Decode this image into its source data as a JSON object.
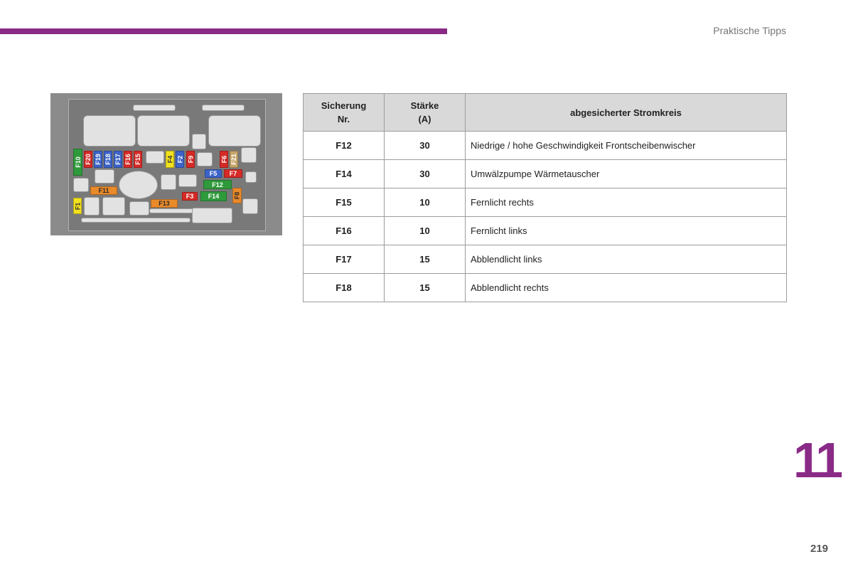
{
  "header": {
    "section_title": "Praktische Tipps"
  },
  "footer": {
    "chapter_number": "11",
    "page_number": "219"
  },
  "diagram": {
    "fuses": [
      {
        "id": "f10",
        "label": "F10",
        "color": "#2f9a3c"
      },
      {
        "id": "f20",
        "label": "F20",
        "color": "#d52a26"
      },
      {
        "id": "f19",
        "label": "F19",
        "color": "#3c63c9"
      },
      {
        "id": "f18",
        "label": "F18",
        "color": "#3c63c9"
      },
      {
        "id": "f17",
        "label": "F17",
        "color": "#3c63c9"
      },
      {
        "id": "f16",
        "label": "F16",
        "color": "#d52a26"
      },
      {
        "id": "f15",
        "label": "F15",
        "color": "#d52a26"
      },
      {
        "id": "f4",
        "label": "F4",
        "color": "#f2e21c"
      },
      {
        "id": "f2",
        "label": "F2",
        "color": "#3c63c9"
      },
      {
        "id": "f9",
        "label": "F9",
        "color": "#d52a26"
      },
      {
        "id": "f6",
        "label": "F6",
        "color": "#d52a26"
      },
      {
        "id": "f21",
        "label": "F21",
        "color": "#c7a66a"
      },
      {
        "id": "f5",
        "label": "F5",
        "color": "#3c63c9"
      },
      {
        "id": "f7",
        "label": "F7",
        "color": "#d52a26"
      },
      {
        "id": "f11",
        "label": "F11",
        "color": "#e98a2b"
      },
      {
        "id": "f12",
        "label": "F12",
        "color": "#2f9a3c"
      },
      {
        "id": "f3",
        "label": "F3",
        "color": "#d52a26"
      },
      {
        "id": "f14",
        "label": "F14",
        "color": "#2f9a3c"
      },
      {
        "id": "f8",
        "label": "F8",
        "color": "#e98a2b"
      },
      {
        "id": "f1",
        "label": "F1",
        "color": "#f2e21c"
      },
      {
        "id": "f13",
        "label": "F13",
        "color": "#e98a2b"
      }
    ]
  },
  "table": {
    "headers": {
      "number_line1": "Sicherung",
      "number_line2": "Nr.",
      "amperage_line1": "Stärke",
      "amperage_line2": "(A)",
      "circuit": "abgesicherter Stromkreis"
    },
    "rows": [
      {
        "number": "F12",
        "amperage": "30",
        "circuit": "Niedrige / hohe Geschwindigkeit Frontscheibenwischer"
      },
      {
        "number": "F14",
        "amperage": "30",
        "circuit": "Umwälzpumpe Wärmetauscher"
      },
      {
        "number": "F15",
        "amperage": "10",
        "circuit": "Fernlicht rechts"
      },
      {
        "number": "F16",
        "amperage": "10",
        "circuit": "Fernlicht links"
      },
      {
        "number": "F17",
        "amperage": "15",
        "circuit": "Abblendlicht links"
      },
      {
        "number": "F18",
        "amperage": "15",
        "circuit": "Abblendlicht rechts"
      }
    ]
  }
}
